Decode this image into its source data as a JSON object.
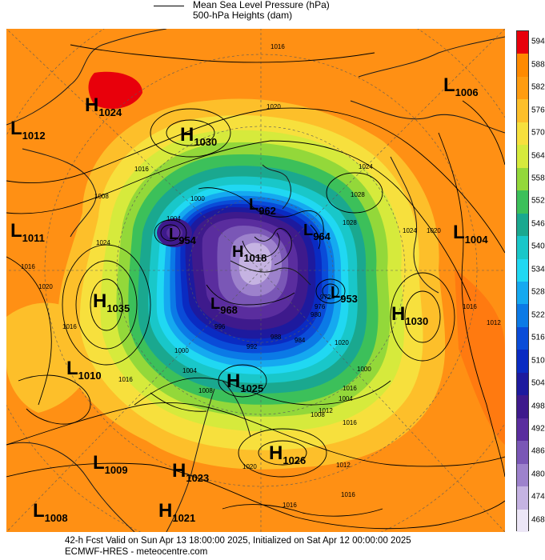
{
  "header": {
    "line1": "Mean Sea Level Pressure (hPa)",
    "line2": "500-hPa Heights (dam)"
  },
  "footer": {
    "line1": "42-h Fcst Valid on Sun Apr 13 18:00:00 2025, Initialized on Sat Apr 12 00:00:00 2025",
    "line2": "ECMWF-HRES - meteocentre.com"
  },
  "colorbar": {
    "labels": [
      "594",
      "588",
      "582",
      "576",
      "570",
      "564",
      "558",
      "552",
      "546",
      "540",
      "534",
      "528",
      "522",
      "516",
      "510",
      "504",
      "498",
      "492",
      "486",
      "480",
      "474",
      "468"
    ],
    "colors": [
      "#e8000b",
      "#ff8a00",
      "#ff9c10",
      "#fdbf2a",
      "#f7e03d",
      "#d6ea3c",
      "#93d83a",
      "#3cc05a",
      "#1aa88f",
      "#19c7c9",
      "#20d8f2",
      "#15a9f0",
      "#0b7ae6",
      "#0a4cd8",
      "#0a2bc2",
      "#1d1a9e",
      "#3e1a8c",
      "#5a2d9e",
      "#7a57b6",
      "#9d82cc",
      "#c5b3e2",
      "#ece6f6"
    ]
  },
  "systems": [
    {
      "type": "H",
      "value": "1024",
      "name": "high-1024-nw"
    },
    {
      "type": "L",
      "value": "1012",
      "name": "low-1012-w"
    },
    {
      "type": "H",
      "value": "1030",
      "name": "high-1030-n"
    },
    {
      "type": "L",
      "value": "1006",
      "name": "low-1006-ne"
    },
    {
      "type": "L",
      "value": "1011",
      "name": "low-1011-w"
    },
    {
      "type": "L",
      "value": "1004",
      "name": "low-1004-e"
    },
    {
      "type": "H",
      "value": "1035",
      "name": "high-1035-w"
    },
    {
      "type": "H",
      "value": "1030",
      "name": "high-1030-e"
    },
    {
      "type": "L",
      "value": "1010",
      "name": "low-1010-sw"
    },
    {
      "type": "H",
      "value": "1025",
      "name": "high-1025-c"
    },
    {
      "type": "L",
      "value": "1009",
      "name": "low-1009-s"
    },
    {
      "type": "H",
      "value": "1023",
      "name": "high-1023-s"
    },
    {
      "type": "H",
      "value": "1026",
      "name": "high-1026-s"
    },
    {
      "type": "L",
      "value": "1008",
      "name": "low-1008-sw"
    },
    {
      "type": "H",
      "value": "1021",
      "name": "high-1021-s"
    },
    {
      "type": "L",
      "value": "962",
      "name": "low-962-polar"
    },
    {
      "type": "L",
      "value": "954",
      "name": "low-954-polar"
    },
    {
      "type": "H",
      "value": "1018",
      "name": "high-1018-polar"
    },
    {
      "type": "L",
      "value": "964",
      "name": "low-964-polar"
    },
    {
      "type": "L",
      "value": "953",
      "name": "low-953-polar"
    },
    {
      "type": "L",
      "value": "968",
      "name": "low-968-polar"
    }
  ],
  "isobar_labels": [
    "1016",
    "1020",
    "1016",
    "1008",
    "1024",
    "1016",
    "1020",
    "1016",
    "1016",
    "1004",
    "1000",
    "1028",
    "1024",
    "1028",
    "1016",
    "1012",
    "1024",
    "1020",
    "1016",
    "1000",
    "1004",
    "1008",
    "1012",
    "1016",
    "1020",
    "1016",
    "1020",
    "1016",
    "1016",
    "1012",
    "1008",
    "1004",
    "1000",
    "996",
    "992",
    "988",
    "984",
    "980",
    "976",
    "972"
  ]
}
